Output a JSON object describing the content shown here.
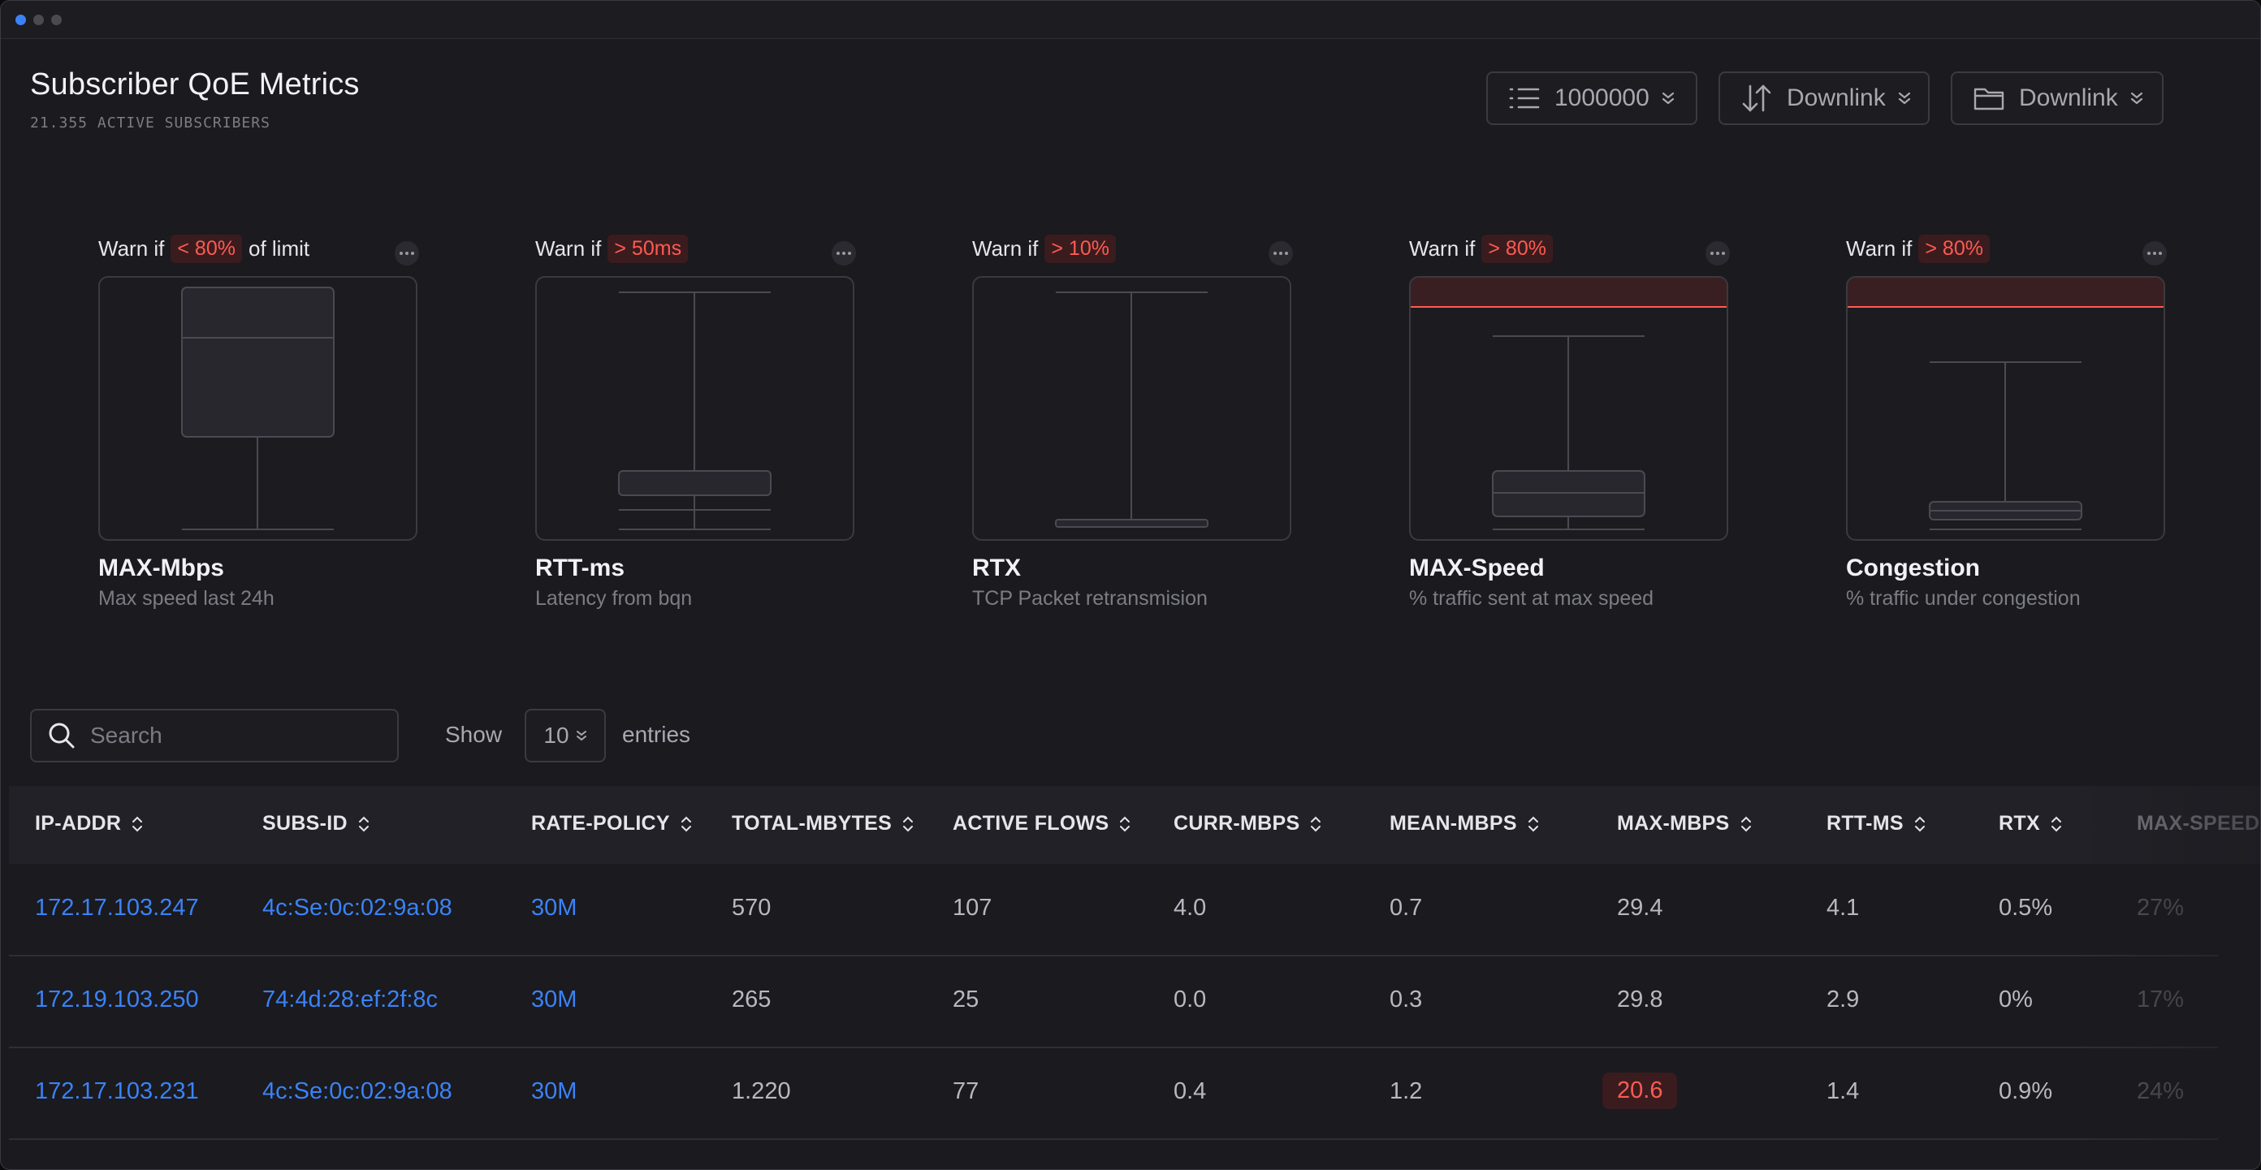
{
  "header": {
    "title": "Subscriber QoE Metrics",
    "subtitle": "21.355 ACTIVE SUBSCRIBERS",
    "controls": [
      {
        "icon": "list-icon",
        "label": "1000000"
      },
      {
        "icon": "arrows-up-down-icon",
        "label": "Downlink"
      },
      {
        "icon": "folder-icon",
        "label": "Downlink"
      }
    ]
  },
  "metrics": [
    {
      "warn_prefix": "Warn if",
      "threshold": "< 80%",
      "warn_suffix": "of limit",
      "name": "MAX-Mbps",
      "description": "Max speed last 24h",
      "alert": false
    },
    {
      "warn_prefix": "Warn if",
      "threshold": "> 50ms",
      "warn_suffix": "",
      "name": "RTT-ms",
      "description": "Latency from bqn",
      "alert": false
    },
    {
      "warn_prefix": "Warn if",
      "threshold": "> 10%",
      "warn_suffix": "",
      "name": "RTX",
      "description": "TCP Packet retransmision",
      "alert": false
    },
    {
      "warn_prefix": "Warn if",
      "threshold": "> 80%",
      "warn_suffix": "",
      "name": "MAX-Speed",
      "description": "% traffic sent at max speed",
      "alert": true
    },
    {
      "warn_prefix": "Warn if",
      "threshold": "> 80%",
      "warn_suffix": "",
      "name": "Congestion",
      "description": "% traffic under congestion",
      "alert": true
    }
  ],
  "colors": {
    "accent": "#3b82f6",
    "alert": "#ff5a52",
    "alert_bg": "#3a1c1e"
  },
  "table_controls": {
    "search_placeholder": "Search",
    "show_label": "Show",
    "page_size": "10",
    "entries_label": "entries"
  },
  "table": {
    "columns": [
      "IP-ADDR",
      "SUBS-ID",
      "RATE-POLICY",
      "TOTAL-MBYTES",
      "ACTIVE FLOWS",
      "CURR-MBPS",
      "MEAN-MBPS",
      "MAX-MBPS",
      "RTT-MS",
      "RTX",
      "MAX-SPEED"
    ],
    "rows": [
      [
        "172.17.103.247",
        "4c:Se:0c:02:9a:08",
        "30M",
        "570",
        "107",
        "4.0",
        "0.7",
        "29.4",
        "4.1",
        "0.5%",
        "27%"
      ],
      [
        "172.19.103.250",
        "74:4d:28:ef:2f:8c",
        "30M",
        "265",
        "25",
        "0.0",
        "0.3",
        "29.8",
        "2.9",
        "0%",
        "17%"
      ],
      [
        "172.17.103.231",
        "4c:Se:0c:02:9a:08",
        "30M",
        "1.220",
        "77",
        "0.4",
        "1.2",
        "20.6",
        "1.4",
        "0.9%",
        "24%"
      ]
    ]
  }
}
